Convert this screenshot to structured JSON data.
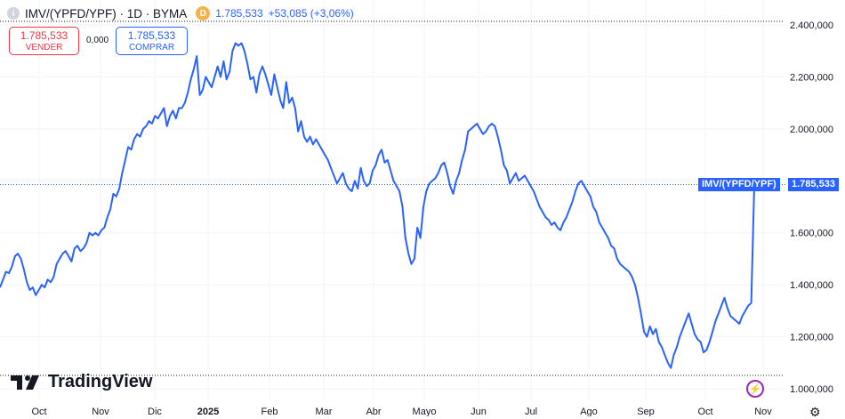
{
  "header": {
    "info_icon": "info-icon",
    "symbol": "IMV/(YPFD/YPF) · 1D · BYMA",
    "exchange_badge": "D",
    "last_price": "1.785,533",
    "change": "+53,085 (+3,06%)"
  },
  "trade": {
    "sell_price": "1.785,533",
    "sell_label": "VENDER",
    "spread": "0,000",
    "buy_price": "1.785,533",
    "buy_label": "COMPRAR"
  },
  "logo_text": "TradingView",
  "price_tag_name": "IMV/(YPFD/YPF)",
  "price_tag_value": "1.785,533",
  "colors": {
    "line": "#2962ff",
    "sell": "#f23645",
    "buy": "#2962ff",
    "grid": "#f0f3fa"
  },
  "chart_data": {
    "type": "line",
    "title": "IMV/(YPFD/YPF) · 1D · BYMA",
    "x_tick_labels": [
      "Oct",
      "Nov",
      "Dic",
      "2025",
      "Feb",
      "Mar",
      "Abr",
      "Mayo",
      "Jun",
      "Jul",
      "Ago",
      "Sep",
      "Oct",
      "Nov"
    ],
    "y_tick_labels": [
      "2.400,000",
      "2.200,000",
      "2.000,000",
      "1.800,000",
      "1.600,000",
      "1.400,000",
      "1.200,000",
      "1.000,000"
    ],
    "y_ticks": [
      2400,
      2200,
      2000,
      1800,
      1600,
      1400,
      1200,
      1000
    ],
    "ylim": [
      990,
      2430
    ],
    "last_value": 1785.533,
    "grid": true,
    "series": [
      {
        "values": [
          1390,
          1420,
          1450,
          1445,
          1470,
          1510,
          1520,
          1500,
          1460,
          1410,
          1380,
          1390,
          1360,
          1380,
          1400,
          1390,
          1420,
          1410,
          1430,
          1480,
          1500,
          1520,
          1530,
          1510,
          1490,
          1540,
          1550,
          1530,
          1540,
          1560,
          1600,
          1590,
          1600,
          1590,
          1610,
          1620,
          1660,
          1690,
          1750,
          1740,
          1770,
          1830,
          1880,
          1930,
          1920,
          1960,
          1980,
          1970,
          2000,
          2010,
          2030,
          2020,
          2050,
          2040,
          2060,
          2080,
          2010,
          2050,
          2070,
          2040,
          2080,
          2080,
          2100,
          2140,
          2190,
          2230,
          2280,
          2130,
          2150,
          2200,
          2180,
          2160,
          2200,
          2240,
          2200,
          2260,
          2190,
          2220,
          2300,
          2330,
          2320,
          2330,
          2300,
          2250,
          2190,
          2200,
          2140,
          2210,
          2240,
          2210,
          2170,
          2130,
          2210,
          2160,
          2110,
          2080,
          2180,
          2100,
          2120,
          2080,
          1990,
          2030,
          1970,
          1950,
          1970,
          1940,
          1960,
          1940,
          1920,
          1900,
          1880,
          1850,
          1820,
          1790,
          1810,
          1830,
          1790,
          1770,
          1760,
          1800,
          1770,
          1850,
          1800,
          1780,
          1790,
          1840,
          1860,
          1900,
          1920,
          1870,
          1880,
          1840,
          1800,
          1780,
          1760,
          1700,
          1580,
          1520,
          1480,
          1500,
          1620,
          1580,
          1700,
          1760,
          1790,
          1800,
          1810,
          1830,
          1860,
          1870,
          1830,
          1780,
          1750,
          1800,
          1830,
          1880,
          1920,
          1990,
          2000,
          2010,
          2020,
          2000,
          1980,
          1990,
          2010,
          2020,
          2010,
          1970,
          1920,
          1860,
          1840,
          1790,
          1810,
          1830,
          1800,
          1810,
          1820,
          1800,
          1780,
          1760,
          1730,
          1700,
          1680,
          1660,
          1650,
          1630,
          1640,
          1620,
          1610,
          1640,
          1660,
          1690,
          1720,
          1760,
          1790,
          1800,
          1780,
          1760,
          1740,
          1700,
          1680,
          1640,
          1620,
          1600,
          1580,
          1550,
          1540,
          1500,
          1480,
          1470,
          1460,
          1450,
          1430,
          1400,
          1350,
          1290,
          1220,
          1200,
          1240,
          1210,
          1230,
          1180,
          1160,
          1130,
          1100,
          1080,
          1130,
          1160,
          1200,
          1230,
          1260,
          1290,
          1250,
          1210,
          1190,
          1180,
          1140,
          1150,
          1180,
          1220,
          1260,
          1290,
          1320,
          1350,
          1310,
          1280,
          1270,
          1260,
          1250,
          1280,
          1300,
          1320,
          1330,
          1785.533
        ]
      }
    ]
  }
}
